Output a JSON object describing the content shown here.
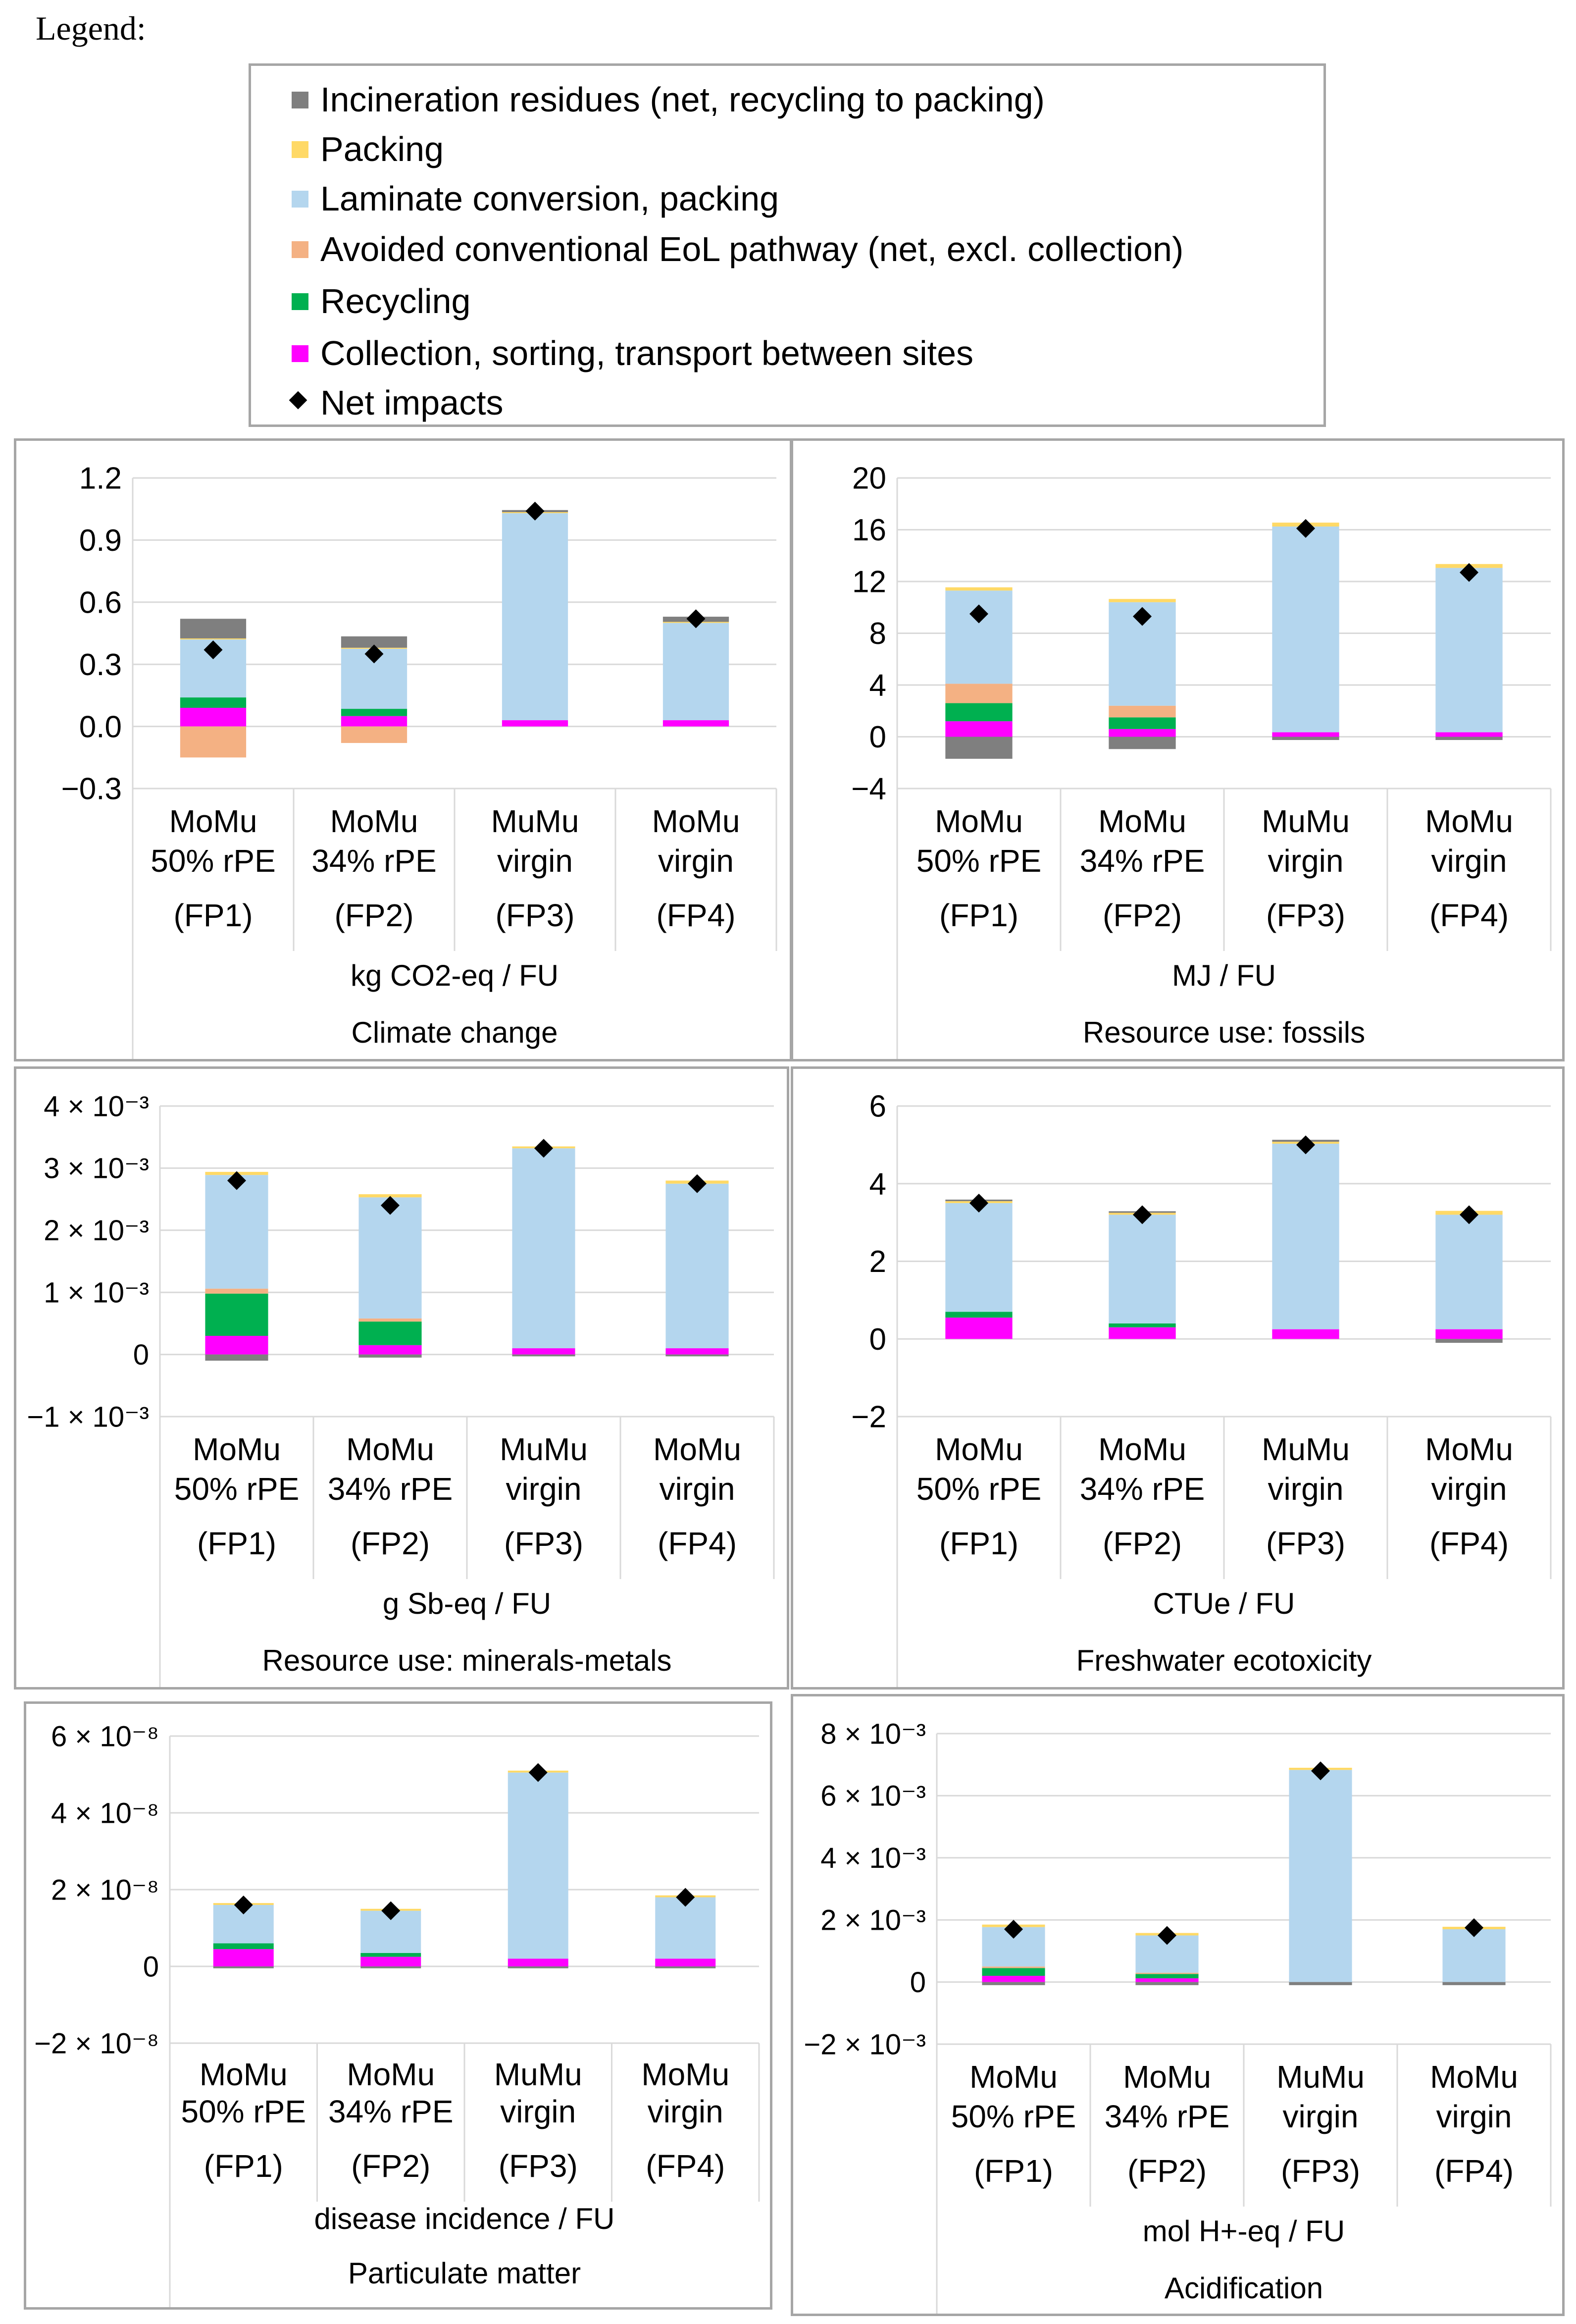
{
  "legend": {
    "title": "Legend:",
    "items": [
      {
        "label": "Incineration residues (net, recycling to packing)",
        "color": "#7f7f7f",
        "icon": "square-icon"
      },
      {
        "label": "Packing",
        "color": "#ffd966",
        "icon": "square-icon"
      },
      {
        "label": "Laminate conversion, packing",
        "color": "#b4d6ee",
        "icon": "square-icon"
      },
      {
        "label": "Avoided conventional EoL pathway (net, excl. collection)",
        "color": "#f4b183",
        "icon": "square-icon"
      },
      {
        "label": "Recycling",
        "color": "#00b050",
        "icon": "square-icon"
      },
      {
        "label": "Collection, sorting, transport between sites",
        "color": "#ff00ff",
        "icon": "square-icon"
      },
      {
        "label": "Net impacts",
        "color": "#000000",
        "icon": "diamond-icon"
      }
    ]
  },
  "series_colors": {
    "incineration": "#7f7f7f",
    "packing": "#ffd966",
    "laminate": "#b4d6ee",
    "avoided": "#f4b183",
    "recycling": "#00b050",
    "collection": "#ff00ff",
    "net": "#000000"
  },
  "chart_data": [
    {
      "type": "bar",
      "stacked": true,
      "title": "Climate change",
      "ylabel": "kg CO2-eq / FU",
      "ylim": [
        -0.3,
        1.2
      ],
      "yticks": [
        -0.3,
        0.0,
        0.3,
        0.6,
        0.9,
        1.2
      ],
      "ytick_labels": [
        "−0.3",
        "0.0",
        "0.3",
        "0.6",
        "0.9",
        "1.2"
      ],
      "categories": [
        [
          "MoMu",
          "50% rPE",
          "(FP1)"
        ],
        [
          "MoMu",
          "34% rPE",
          "(FP2)"
        ],
        [
          "MuMu",
          "virgin",
          "(FP3)"
        ],
        [
          "MoMu",
          "virgin",
          "(FP4)"
        ]
      ],
      "positive": {
        "collection": [
          0.09,
          0.05,
          0.03,
          0.03
        ],
        "recycling": [
          0.05,
          0.035,
          0.0,
          0.0
        ],
        "laminate": [
          0.28,
          0.29,
          1.0,
          0.47
        ],
        "packing": [
          0.005,
          0.005,
          0.005,
          0.005
        ],
        "incineration": [
          0.095,
          0.055,
          0.01,
          0.025
        ]
      },
      "negative": {
        "avoided": [
          -0.15,
          -0.08,
          0.0,
          0.0
        ]
      },
      "net": [
        0.37,
        0.35,
        1.04,
        0.52
      ]
    },
    {
      "type": "bar",
      "stacked": true,
      "title": "Resource use: fossils",
      "ylabel": "MJ / FU",
      "ylim": [
        -4,
        20
      ],
      "yticks": [
        -4,
        0,
        4,
        8,
        12,
        16,
        20
      ],
      "ytick_labels": [
        "−4",
        "0",
        "4",
        "8",
        "12",
        "16",
        "20"
      ],
      "categories": [
        [
          "MoMu",
          "50% rPE",
          "(FP1)"
        ],
        [
          "MoMu",
          "34% rPE",
          "(FP2)"
        ],
        [
          "MuMu",
          "virgin",
          "(FP3)"
        ],
        [
          "MoMu",
          "virgin",
          "(FP4)"
        ]
      ],
      "positive": {
        "collection": [
          1.2,
          0.6,
          0.35,
          0.35
        ],
        "recycling": [
          1.4,
          0.9,
          0.0,
          0.0
        ],
        "avoided": [
          1.5,
          0.9,
          0.0,
          0.0
        ],
        "laminate": [
          7.2,
          8.0,
          15.9,
          12.7
        ],
        "packing": [
          0.25,
          0.25,
          0.3,
          0.3
        ]
      },
      "negative": {
        "incineration": [
          -1.7,
          -0.95,
          -0.25,
          -0.25
        ]
      },
      "net": [
        9.5,
        9.3,
        16.1,
        12.7
      ]
    },
    {
      "type": "bar",
      "stacked": true,
      "title": "Resource use: minerals-metals",
      "ylabel": "g Sb-eq / FU",
      "ylim": [
        -0.001,
        0.004
      ],
      "yticks": [
        -0.001,
        0,
        0.001,
        0.002,
        0.003,
        0.004
      ],
      "ytick_labels": [
        "−1 × 10⁻³",
        "0",
        "1 × 10⁻³",
        "2 × 10⁻³",
        "3 × 10⁻³",
        "4 × 10⁻³"
      ],
      "categories": [
        [
          "MoMu",
          "50% rPE",
          "(FP1)"
        ],
        [
          "MoMu",
          "34% rPE",
          "(FP2)"
        ],
        [
          "MuMu",
          "virgin",
          "(FP3)"
        ],
        [
          "MoMu",
          "virgin",
          "(FP4)"
        ]
      ],
      "positive": {
        "collection": [
          0.0003,
          0.00015,
          0.0001,
          0.0001
        ],
        "recycling": [
          0.00068,
          0.00038,
          0.0,
          0.0
        ],
        "avoided": [
          8e-05,
          5e-05,
          0.0,
          0.0
        ],
        "laminate": [
          0.00183,
          0.00195,
          0.00322,
          0.00265
        ],
        "packing": [
          5e-05,
          5e-05,
          3e-05,
          5e-05
        ]
      },
      "negative": {
        "incineration": [
          -0.0001,
          -5e-05,
          -3e-05,
          -3e-05
        ]
      },
      "net": [
        0.0028,
        0.0024,
        0.00332,
        0.00275
      ]
    },
    {
      "type": "bar",
      "stacked": true,
      "title": "Freshwater ecotoxicity",
      "ylabel": "CTUe / FU",
      "ylim": [
        -2,
        6
      ],
      "yticks": [
        -2,
        0,
        2,
        4,
        6
      ],
      "ytick_labels": [
        "−2",
        "0",
        "2",
        "4",
        "6"
      ],
      "categories": [
        [
          "MoMu",
          "50% rPE",
          "(FP1)"
        ],
        [
          "MoMu",
          "34% rPE",
          "(FP2)"
        ],
        [
          "MuMu",
          "virgin",
          "(FP3)"
        ],
        [
          "MoMu",
          "virgin",
          "(FP4)"
        ]
      ],
      "positive": {
        "collection": [
          0.55,
          0.3,
          0.25,
          0.25
        ],
        "recycling": [
          0.15,
          0.1,
          0.0,
          0.0
        ],
        "laminate": [
          2.8,
          2.8,
          4.78,
          2.95
        ],
        "packing": [
          0.05,
          0.05,
          0.05,
          0.1
        ],
        "incineration": [
          0.04,
          0.04,
          0.05,
          0.0
        ]
      },
      "negative": {
        "incineration": [
          0.0,
          0.0,
          0.0,
          -0.1
        ]
      },
      "net": [
        3.5,
        3.2,
        5.0,
        3.2
      ]
    },
    {
      "type": "bar",
      "stacked": true,
      "title": "Particulate matter",
      "ylabel": "disease incidence / FU",
      "ylim": [
        -2e-08,
        6e-08
      ],
      "yticks": [
        -2e-08,
        0,
        2e-08,
        4e-08,
        6e-08
      ],
      "ytick_labels": [
        "−2 × 10⁻⁸",
        "0",
        "2 × 10⁻⁸",
        "4 × 10⁻⁸",
        "6 × 10⁻⁸"
      ],
      "categories": [
        [
          "MoMu",
          "50% rPE",
          "(FP1)"
        ],
        [
          "MoMu",
          "34% rPE",
          "(FP2)"
        ],
        [
          "MuMu",
          "virgin",
          "(FP3)"
        ],
        [
          "MoMu",
          "virgin",
          "(FP4)"
        ]
      ],
      "positive": {
        "collection": [
          4.5e-09,
          2.5e-09,
          2e-09,
          2e-09
        ],
        "recycling": [
          1.5e-09,
          1e-09,
          0,
          0
        ],
        "laminate": [
          1e-08,
          1.1e-08,
          4.85e-08,
          1.6e-08
        ],
        "packing": [
          5e-10,
          5e-10,
          5e-10,
          5e-10
        ]
      },
      "negative": {
        "incineration": [
          -5e-10,
          -5e-10,
          -5e-10,
          -5e-10
        ]
      },
      "net": [
        1.6e-08,
        1.45e-08,
        5.05e-08,
        1.8e-08
      ]
    },
    {
      "type": "bar",
      "stacked": true,
      "title": "Acidification",
      "ylabel": "mol H+-eq / FU",
      "ylim": [
        -0.002,
        0.008
      ],
      "yticks": [
        -0.002,
        0,
        0.002,
        0.004,
        0.006,
        0.008
      ],
      "ytick_labels": [
        "−2 × 10⁻³",
        "0",
        "2 × 10⁻³",
        "4 × 10⁻³",
        "6 × 10⁻³",
        "8 × 10⁻³"
      ],
      "categories": [
        [
          "MoMu",
          "50% rPE",
          "(FP1)"
        ],
        [
          "MoMu",
          "34% rPE",
          "(FP2)"
        ],
        [
          "MuMu",
          "virgin",
          "(FP3)"
        ],
        [
          "MoMu",
          "virgin",
          "(FP4)"
        ]
      ],
      "positive": {
        "collection": [
          0.0002,
          0.00012,
          0.0,
          0.0
        ],
        "recycling": [
          0.00025,
          0.00014,
          0.0,
          0.0
        ],
        "avoided": [
          5e-05,
          4e-05,
          0.0,
          0.0
        ],
        "laminate": [
          0.00127,
          0.0012,
          0.00683,
          0.0017
        ],
        "packing": [
          8e-05,
          8e-05,
          7e-05,
          8e-05
        ]
      },
      "negative": {
        "incineration": [
          -0.0001,
          -0.0001,
          -0.0001,
          -0.0001
        ]
      },
      "net": [
        0.0017,
        0.0015,
        0.0068,
        0.00175
      ]
    }
  ]
}
